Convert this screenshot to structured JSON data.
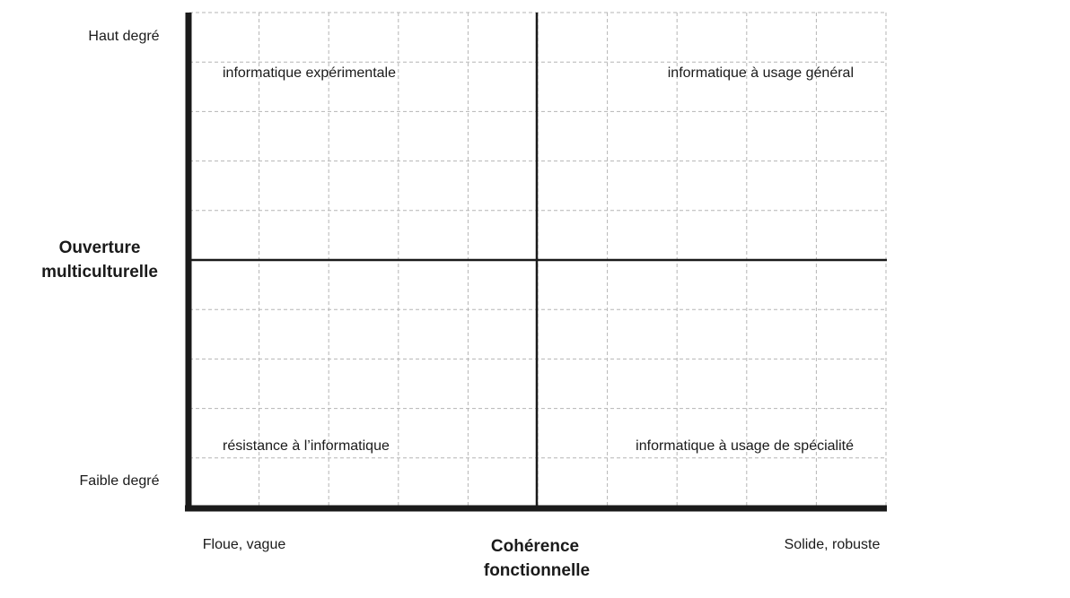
{
  "y_axis": {
    "title": [
      "Ouverture",
      "multiculturelle"
    ],
    "high": "Haut degré",
    "low": "Faible degré"
  },
  "x_axis": {
    "title": [
      "Cohérence",
      "fonctionnelle"
    ],
    "low": "Floue, vague",
    "high": "Solide, robuste"
  },
  "quadrants": {
    "top_left": "informatique expérimentale",
    "top_right": "informatique à usage général",
    "bottom_left": "résistance à l’informatique",
    "bottom_right": "informatique à usage de spécialité"
  }
}
